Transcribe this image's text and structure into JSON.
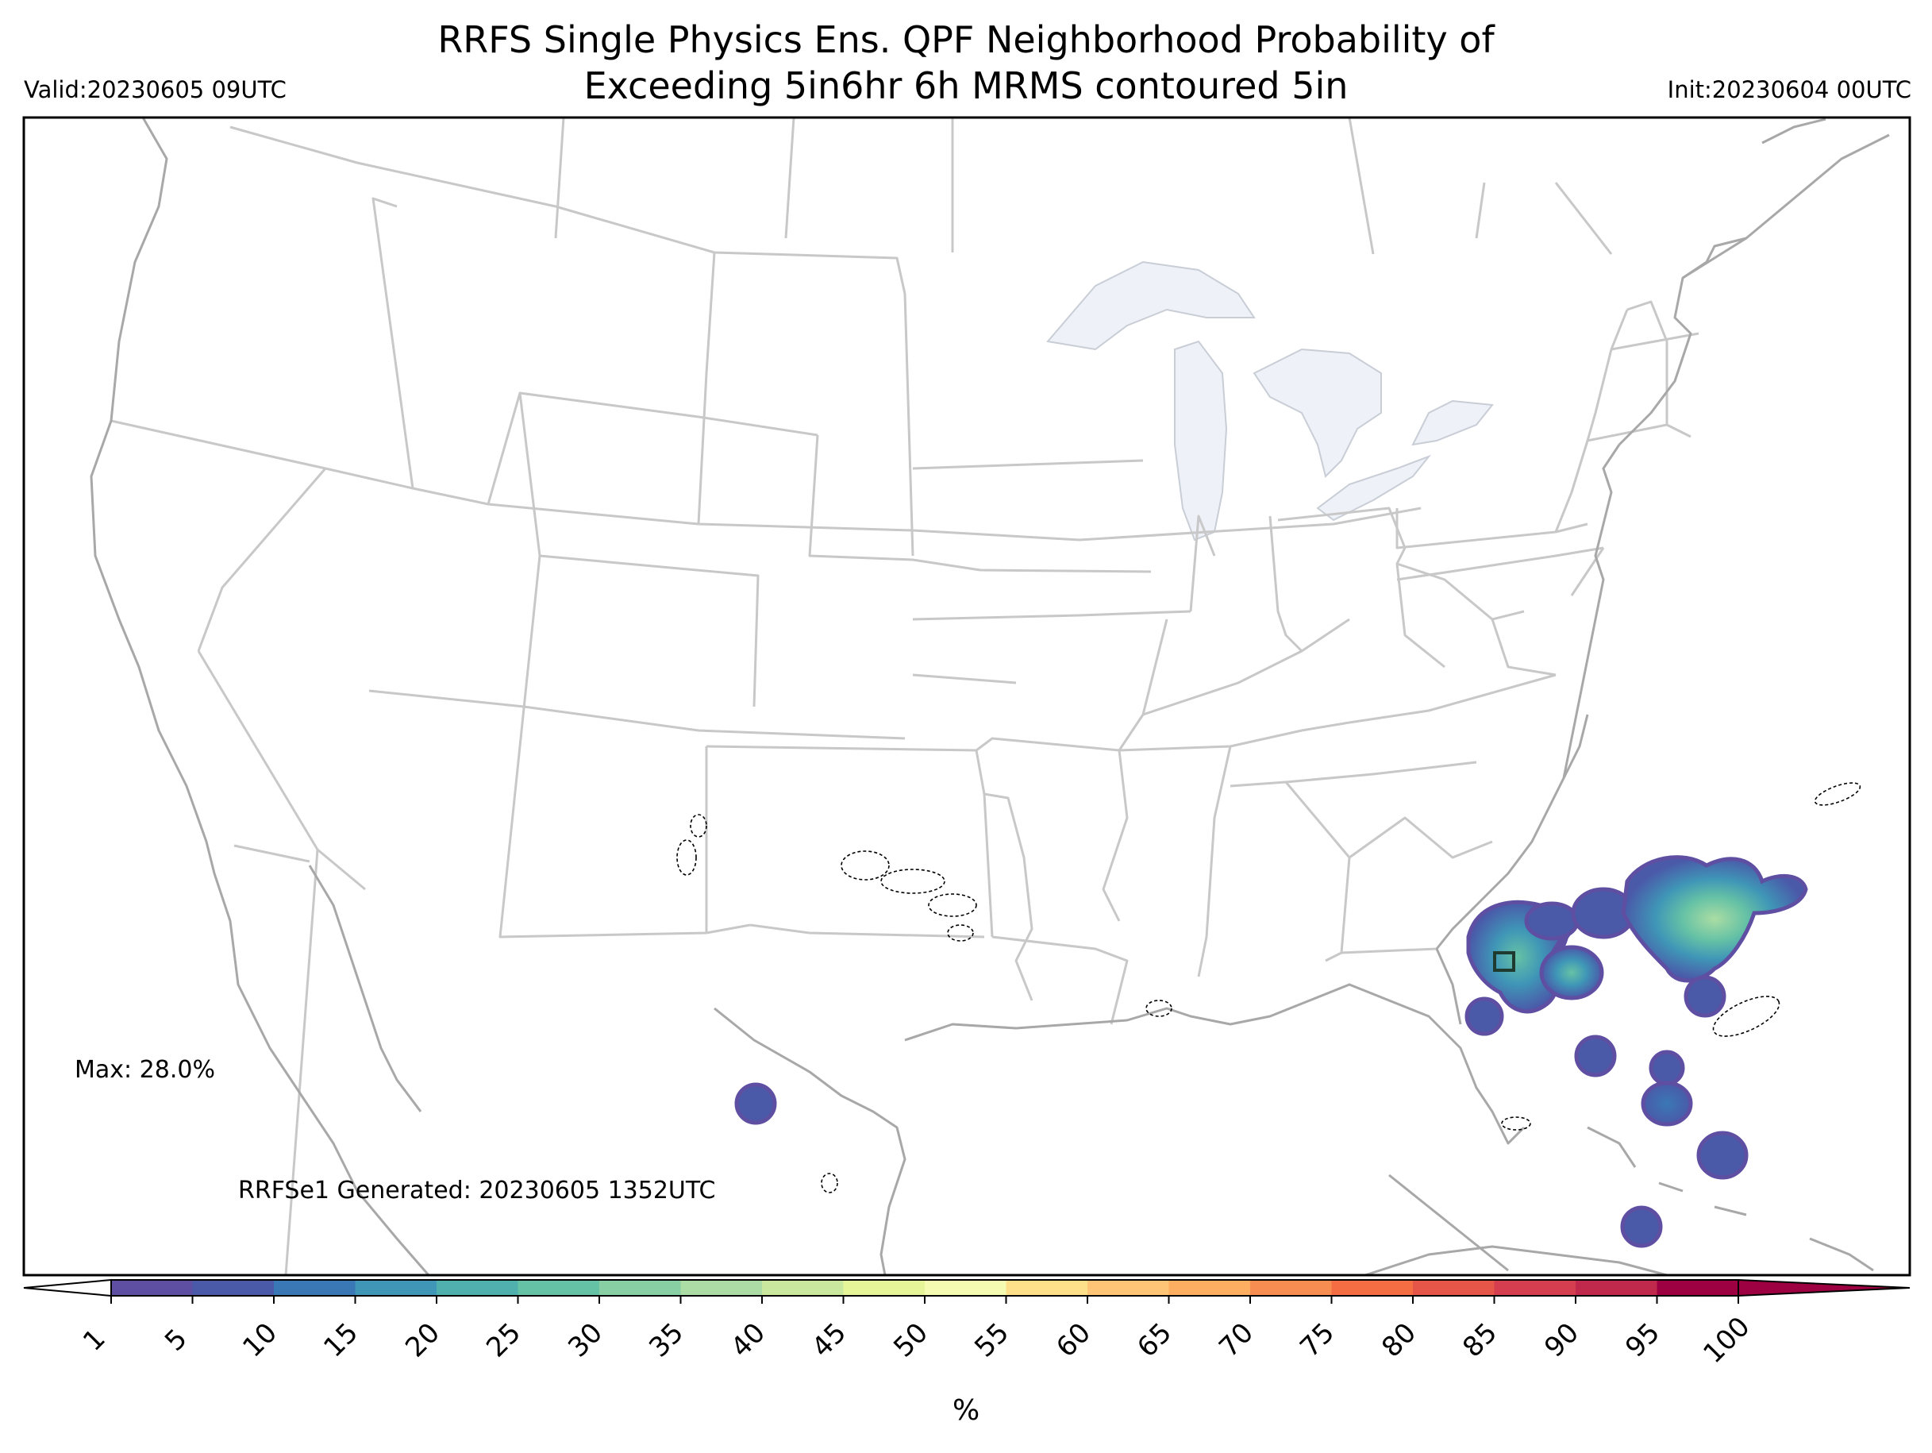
{
  "header": {
    "title_line1": "RRFS Single Physics Ens. QPF Neighborhood Probability of",
    "title_line2": "Exceeding 5in6hr 6h MRMS contoured 5in",
    "valid": "Valid:20230605 09UTC",
    "init": "Init:20230604 00UTC"
  },
  "annotations": {
    "max": "Max: 28.0%",
    "generated": "RRFSe1 Generated: 20230605 1352UTC"
  },
  "colorbar": {
    "unit": "%",
    "ticks": [
      "1",
      "5",
      "10",
      "15",
      "20",
      "25",
      "30",
      "35",
      "40",
      "45",
      "50",
      "55",
      "60",
      "65",
      "70",
      "75",
      "80",
      "85",
      "90",
      "95",
      "100"
    ],
    "colors": [
      "#5e4fa2",
      "#4a5aa9",
      "#3a78b5",
      "#3f96b7",
      "#4fb0ae",
      "#66c2a5",
      "#88cfa4",
      "#abdda4",
      "#cbe99e",
      "#e6f598",
      "#f5fbb1",
      "#fee08b",
      "#fdc575",
      "#fdae61",
      "#f88d52",
      "#f46d43",
      "#e55649",
      "#d53e4f",
      "#c0294c",
      "#9e0142"
    ]
  },
  "map_style": {
    "land_color": "#ffffff",
    "border_color": "#c8c8c8",
    "coast_color": "#a8a8a8",
    "lake_color": "#eef2f8",
    "mrms_contour_color": "#000000"
  },
  "probability_blobs": [
    {
      "region": "Gulf of Mexico, off Texas",
      "max_percent": 5
    },
    {
      "region": "NE Florida coast",
      "max_percent": 20
    },
    {
      "region": "Atlantic off Georgia",
      "max_percent": 28
    },
    {
      "region": "Atlantic off Florida",
      "max_percent": 15
    },
    {
      "region": "Northern Bahamas",
      "max_percent": 10
    },
    {
      "region": "Central Bahamas",
      "max_percent": 10
    }
  ]
}
